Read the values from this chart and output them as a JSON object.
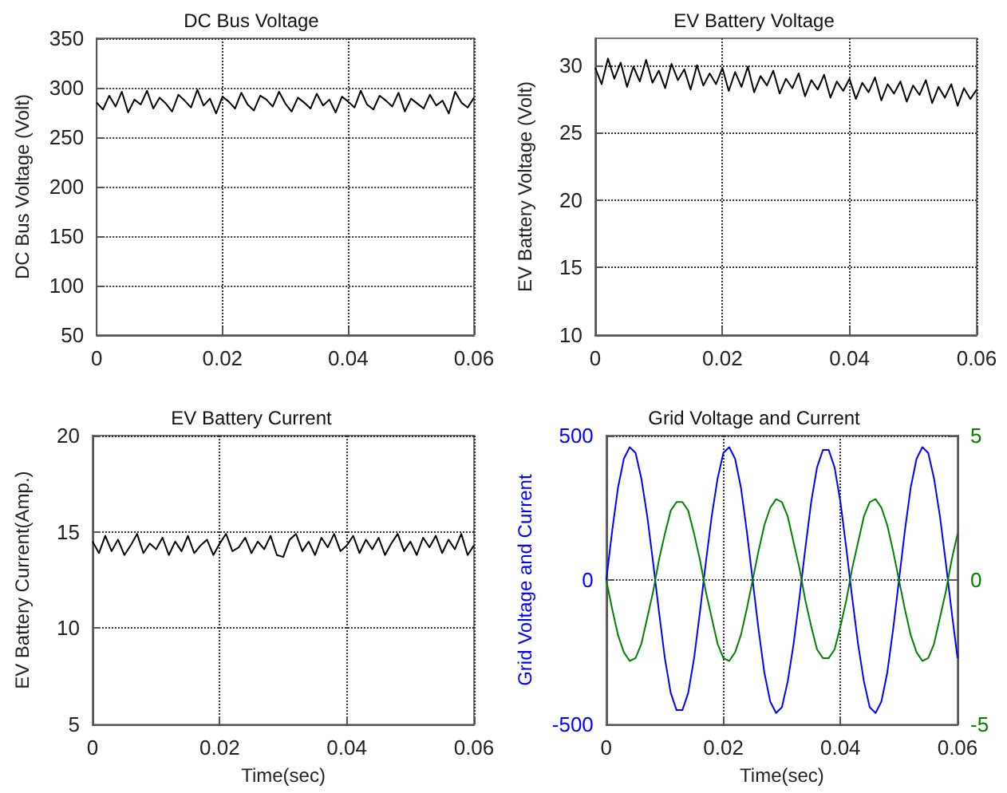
{
  "chart_data": [
    {
      "type": "line",
      "title": "DC Bus Voltage",
      "ylabel": "DC Bus Voltage (Volt)",
      "color": "#000000",
      "line_style": "solid",
      "grid": true,
      "xlim": [
        0,
        0.06
      ],
      "xticks": [
        0,
        0.02,
        0.04,
        0.06
      ],
      "ylim": [
        50,
        350
      ],
      "yticks": [
        50,
        100,
        150,
        200,
        250,
        300,
        350
      ],
      "x": [
        0,
        0.001,
        0.002,
        0.003,
        0.004,
        0.005,
        0.006,
        0.007,
        0.008,
        0.009,
        0.01,
        0.011,
        0.012,
        0.013,
        0.014,
        0.015,
        0.016,
        0.017,
        0.018,
        0.019,
        0.02,
        0.021,
        0.022,
        0.023,
        0.024,
        0.025,
        0.026,
        0.027,
        0.028,
        0.029,
        0.03,
        0.031,
        0.032,
        0.033,
        0.034,
        0.035,
        0.036,
        0.037,
        0.038,
        0.039,
        0.04,
        0.041,
        0.042,
        0.043,
        0.044,
        0.045,
        0.046,
        0.047,
        0.048,
        0.049,
        0.05,
        0.051,
        0.052,
        0.053,
        0.054,
        0.055,
        0.056,
        0.057,
        0.058,
        0.059,
        0.06
      ],
      "values": [
        285,
        278,
        292,
        281,
        296,
        275,
        288,
        283,
        297,
        279,
        290,
        284,
        276,
        293,
        287,
        280,
        298,
        282,
        289,
        274,
        291,
        286,
        279,
        295,
        283,
        277,
        292,
        288,
        281,
        296,
        284,
        276,
        290,
        285,
        279,
        294,
        282,
        288,
        275,
        291,
        286,
        280,
        297,
        283,
        278,
        292,
        287,
        281,
        295,
        276,
        289,
        284,
        279,
        293,
        282,
        287,
        274,
        296,
        285,
        280,
        290
      ]
    },
    {
      "type": "line",
      "title": "EV Battery Voltage",
      "ylabel": "EV Battery Voltage (Volt)",
      "color": "#000000",
      "line_style": "solid",
      "grid": true,
      "xlim": [
        0,
        0.06
      ],
      "xticks": [
        0,
        0.02,
        0.04,
        0.06
      ],
      "ylim": [
        10,
        32
      ],
      "yticks": [
        10,
        15,
        20,
        25,
        30
      ],
      "x": [
        0,
        0.001,
        0.002,
        0.003,
        0.004,
        0.005,
        0.006,
        0.007,
        0.008,
        0.009,
        0.01,
        0.011,
        0.012,
        0.013,
        0.014,
        0.015,
        0.016,
        0.017,
        0.018,
        0.019,
        0.02,
        0.021,
        0.022,
        0.023,
        0.024,
        0.025,
        0.026,
        0.027,
        0.028,
        0.029,
        0.03,
        0.031,
        0.032,
        0.033,
        0.034,
        0.035,
        0.036,
        0.037,
        0.038,
        0.039,
        0.04,
        0.041,
        0.042,
        0.043,
        0.044,
        0.045,
        0.046,
        0.047,
        0.048,
        0.049,
        0.05,
        0.051,
        0.052,
        0.053,
        0.054,
        0.055,
        0.056,
        0.057,
        0.058,
        0.059,
        0.06
      ],
      "values": [
        29.8,
        28.6,
        30.5,
        29.0,
        30.2,
        28.4,
        29.9,
        28.8,
        30.4,
        28.7,
        29.6,
        28.3,
        30.1,
        28.9,
        29.7,
        28.2,
        30.0,
        28.5,
        29.4,
        28.6,
        29.8,
        28.1,
        29.5,
        28.4,
        29.9,
        28.0,
        29.2,
        28.5,
        29.6,
        27.9,
        29.0,
        28.3,
        29.4,
        27.7,
        28.9,
        28.2,
        29.3,
        27.6,
        28.8,
        28.1,
        29.0,
        27.5,
        28.7,
        28.0,
        29.1,
        27.4,
        28.6,
        27.9,
        28.8,
        27.3,
        28.5,
        27.8,
        28.9,
        27.2,
        28.4,
        27.6,
        28.6,
        27.0,
        28.3,
        27.5,
        28.2
      ]
    },
    {
      "type": "line",
      "title": "EV Battery Current",
      "ylabel": "EV Battery Current(Amp.)",
      "xlabel": "Time(sec)",
      "color": "#000000",
      "line_style": "solid",
      "grid": true,
      "xlim": [
        0,
        0.06
      ],
      "xticks": [
        0,
        0.02,
        0.04,
        0.06
      ],
      "ylim": [
        5,
        20
      ],
      "yticks": [
        5,
        10,
        15,
        20
      ],
      "x": [
        0,
        0.001,
        0.002,
        0.003,
        0.004,
        0.005,
        0.006,
        0.007,
        0.008,
        0.009,
        0.01,
        0.011,
        0.012,
        0.013,
        0.014,
        0.015,
        0.016,
        0.017,
        0.018,
        0.019,
        0.02,
        0.021,
        0.022,
        0.023,
        0.024,
        0.025,
        0.026,
        0.027,
        0.028,
        0.029,
        0.03,
        0.031,
        0.032,
        0.033,
        0.034,
        0.035,
        0.036,
        0.037,
        0.038,
        0.039,
        0.04,
        0.041,
        0.042,
        0.043,
        0.044,
        0.045,
        0.046,
        0.047,
        0.048,
        0.049,
        0.05,
        0.051,
        0.052,
        0.053,
        0.054,
        0.055,
        0.056,
        0.057,
        0.058,
        0.059,
        0.06
      ],
      "values": [
        14.5,
        13.9,
        14.8,
        14.0,
        14.6,
        13.8,
        14.3,
        14.9,
        13.9,
        14.4,
        14.1,
        14.7,
        13.8,
        14.5,
        14.0,
        14.8,
        13.9,
        14.3,
        14.6,
        13.8,
        14.4,
        14.9,
        14.0,
        14.2,
        14.7,
        13.9,
        14.5,
        14.1,
        14.8,
        13.8,
        13.7,
        14.6,
        14.9,
        14.0,
        14.5,
        13.8,
        14.7,
        14.2,
        14.9,
        14.0,
        14.3,
        14.8,
        13.9,
        14.6,
        14.1,
        14.7,
        13.8,
        14.4,
        14.9,
        14.0,
        14.5,
        13.8,
        14.7,
        14.2,
        14.8,
        13.9,
        14.6,
        14.1,
        14.9,
        13.8,
        14.3
      ]
    },
    {
      "type": "line",
      "title": "Grid Voltage and Current",
      "ylabel": "Grid Voltage and Current",
      "xlabel": "Time(sec)",
      "line_style": "solid",
      "grid": true,
      "xlim": [
        0,
        0.06
      ],
      "xticks": [
        0,
        0.02,
        0.04,
        0.06
      ],
      "ylim": [
        -500,
        500
      ],
      "yticks": [
        -500,
        0,
        500
      ],
      "y2lim": [
        -5,
        5
      ],
      "y2ticks": [
        -5,
        0,
        5
      ],
      "x": [
        0,
        0.001,
        0.002,
        0.003,
        0.004,
        0.005,
        0.006,
        0.007,
        0.008,
        0.009,
        0.01,
        0.011,
        0.012,
        0.013,
        0.014,
        0.015,
        0.016,
        0.017,
        0.018,
        0.019,
        0.02,
        0.021,
        0.022,
        0.023,
        0.024,
        0.025,
        0.026,
        0.027,
        0.028,
        0.029,
        0.03,
        0.031,
        0.032,
        0.033,
        0.034,
        0.035,
        0.036,
        0.037,
        0.038,
        0.039,
        0.04,
        0.041,
        0.042,
        0.043,
        0.044,
        0.045,
        0.046,
        0.047,
        0.048,
        0.049,
        0.05,
        0.051,
        0.052,
        0.053,
        0.054,
        0.055,
        0.056,
        0.057,
        0.058,
        0.059,
        0.06
      ],
      "series": [
        {
          "color": "#0000ff",
          "values": [
            0,
            170,
            320,
            420,
            460,
            440,
            350,
            220,
            60,
            -110,
            -270,
            -390,
            -450,
            -450,
            -390,
            -270,
            -110,
            60,
            220,
            350,
            440,
            460,
            420,
            320,
            170,
            0,
            -170,
            -320,
            -420,
            -460,
            -440,
            -350,
            -220,
            -60,
            110,
            270,
            390,
            450,
            450,
            390,
            270,
            110,
            -60,
            -220,
            -350,
            -440,
            -460,
            -420,
            -320,
            -170,
            0,
            170,
            320,
            420,
            460,
            440,
            350,
            220,
            60,
            -110,
            -270
          ]
        },
        {
          "color": "#008000",
          "axis": "y2",
          "values": [
            0,
            -1.0,
            -1.9,
            -2.5,
            -2.8,
            -2.7,
            -2.2,
            -1.3,
            -0.4,
            0.7,
            1.6,
            2.4,
            2.7,
            2.7,
            2.4,
            1.6,
            0.7,
            -0.4,
            -1.3,
            -2.2,
            -2.7,
            -2.8,
            -2.5,
            -1.9,
            -1.0,
            0,
            1.0,
            1.9,
            2.5,
            2.8,
            2.7,
            2.2,
            1.3,
            0.4,
            -0.7,
            -1.6,
            -2.4,
            -2.7,
            -2.7,
            -2.4,
            -1.6,
            -0.7,
            0.4,
            1.3,
            2.2,
            2.7,
            2.8,
            2.5,
            1.9,
            1.0,
            0,
            -1.0,
            -1.9,
            -2.5,
            -2.8,
            -2.7,
            -2.2,
            -1.3,
            -0.4,
            0.7,
            1.6
          ]
        }
      ]
    }
  ]
}
